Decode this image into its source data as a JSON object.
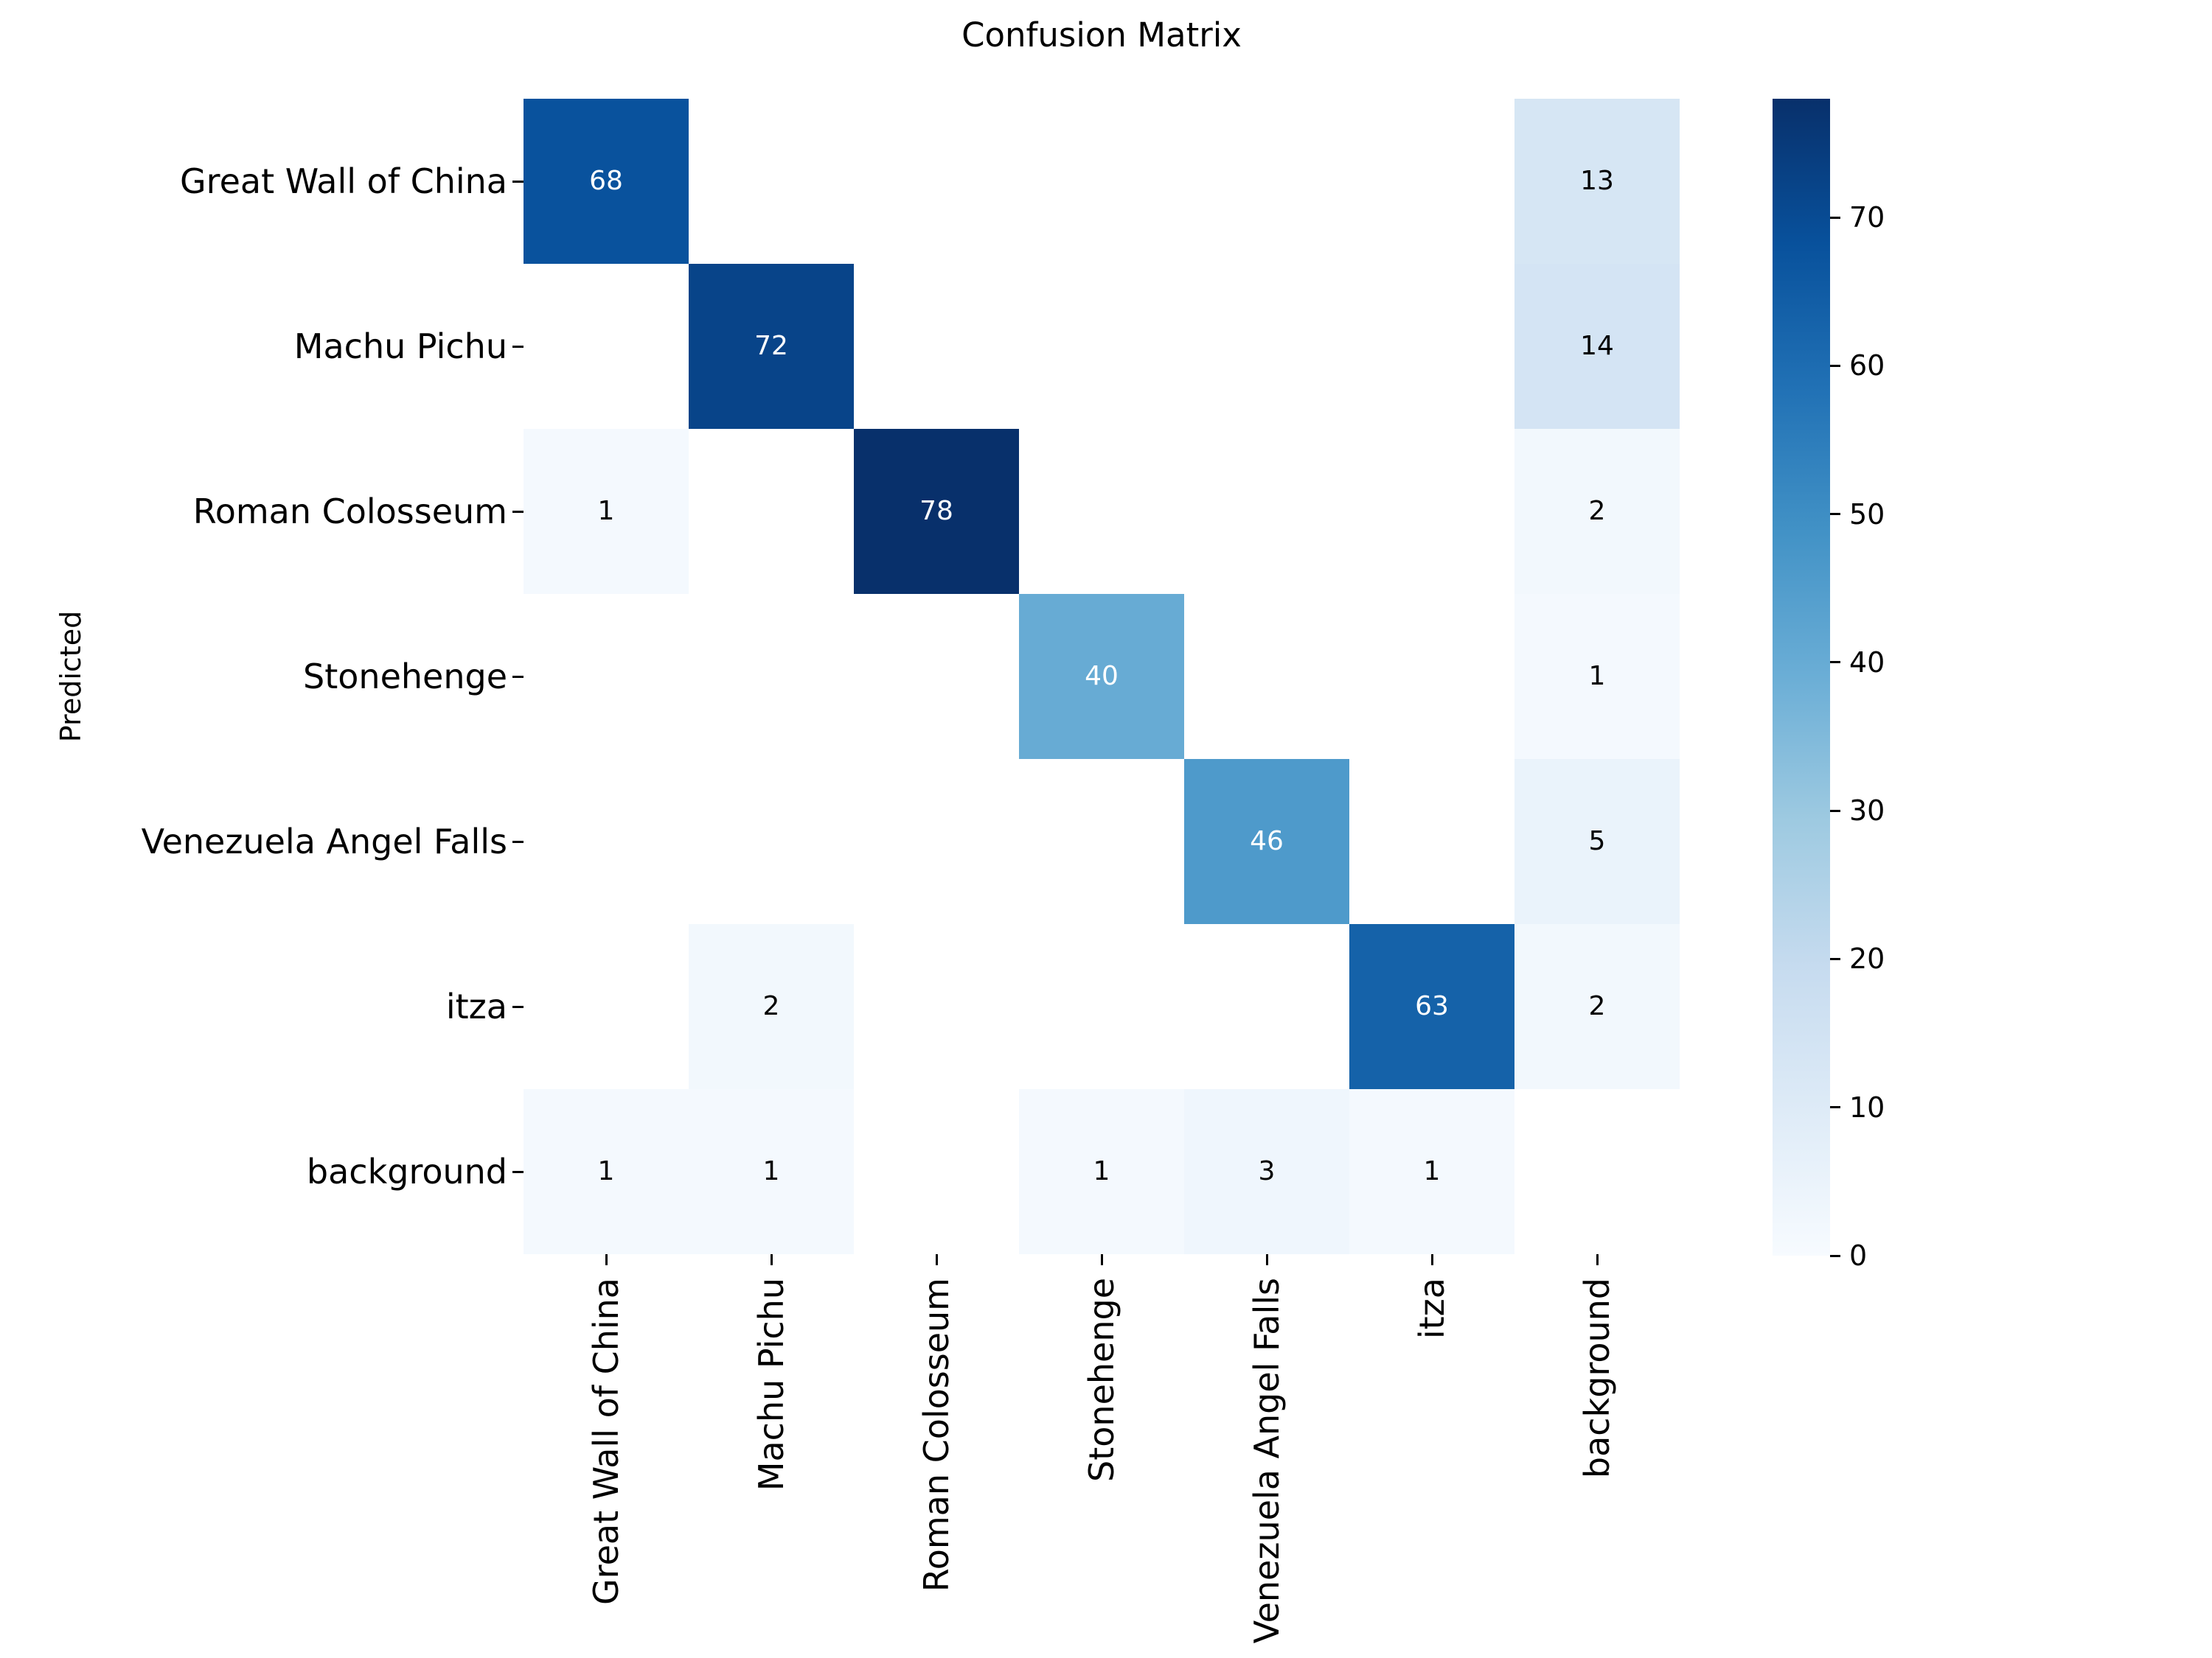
{
  "chart_data": {
    "type": "heatmap",
    "title": "Confusion Matrix",
    "xlabel": "",
    "ylabel": "Predicted",
    "categories": [
      "Great Wall of China",
      "Machu Pichu",
      "Roman Colosseum",
      "Stonehenge",
      "Venezuela Angel Falls",
      "itza",
      "background"
    ],
    "row_axis": "Predicted",
    "matrix": [
      [
        68,
        0,
        0,
        0,
        0,
        0,
        13
      ],
      [
        0,
        72,
        0,
        0,
        0,
        0,
        14
      ],
      [
        1,
        0,
        78,
        0,
        0,
        0,
        2
      ],
      [
        0,
        0,
        0,
        40,
        0,
        0,
        1
      ],
      [
        0,
        0,
        0,
        0,
        46,
        0,
        5
      ],
      [
        0,
        2,
        0,
        0,
        0,
        63,
        2
      ],
      [
        1,
        1,
        0,
        1,
        3,
        1,
        0
      ]
    ],
    "mask_zeros": true,
    "vmin": 0,
    "vmax": 78,
    "colormap": "Blues",
    "colormap_stops": [
      [
        0,
        "#f7fbff"
      ],
      [
        0.125,
        "#deebf7"
      ],
      [
        0.25,
        "#c6dbef"
      ],
      [
        0.375,
        "#9ecae1"
      ],
      [
        0.5,
        "#6baed6"
      ],
      [
        0.625,
        "#4292c6"
      ],
      [
        0.75,
        "#2171b5"
      ],
      [
        0.875,
        "#08519c"
      ],
      [
        1,
        "#08306b"
      ]
    ],
    "annotation_text_colors": {
      "dark_cell": "#ffffff",
      "light_cell": "#000000"
    },
    "empty_cell_color": "#ffffff",
    "colorbar_ticks": [
      "0",
      "10",
      "20",
      "30",
      "40",
      "50",
      "60",
      "70"
    ],
    "legend_position": "right",
    "grid": false
  }
}
